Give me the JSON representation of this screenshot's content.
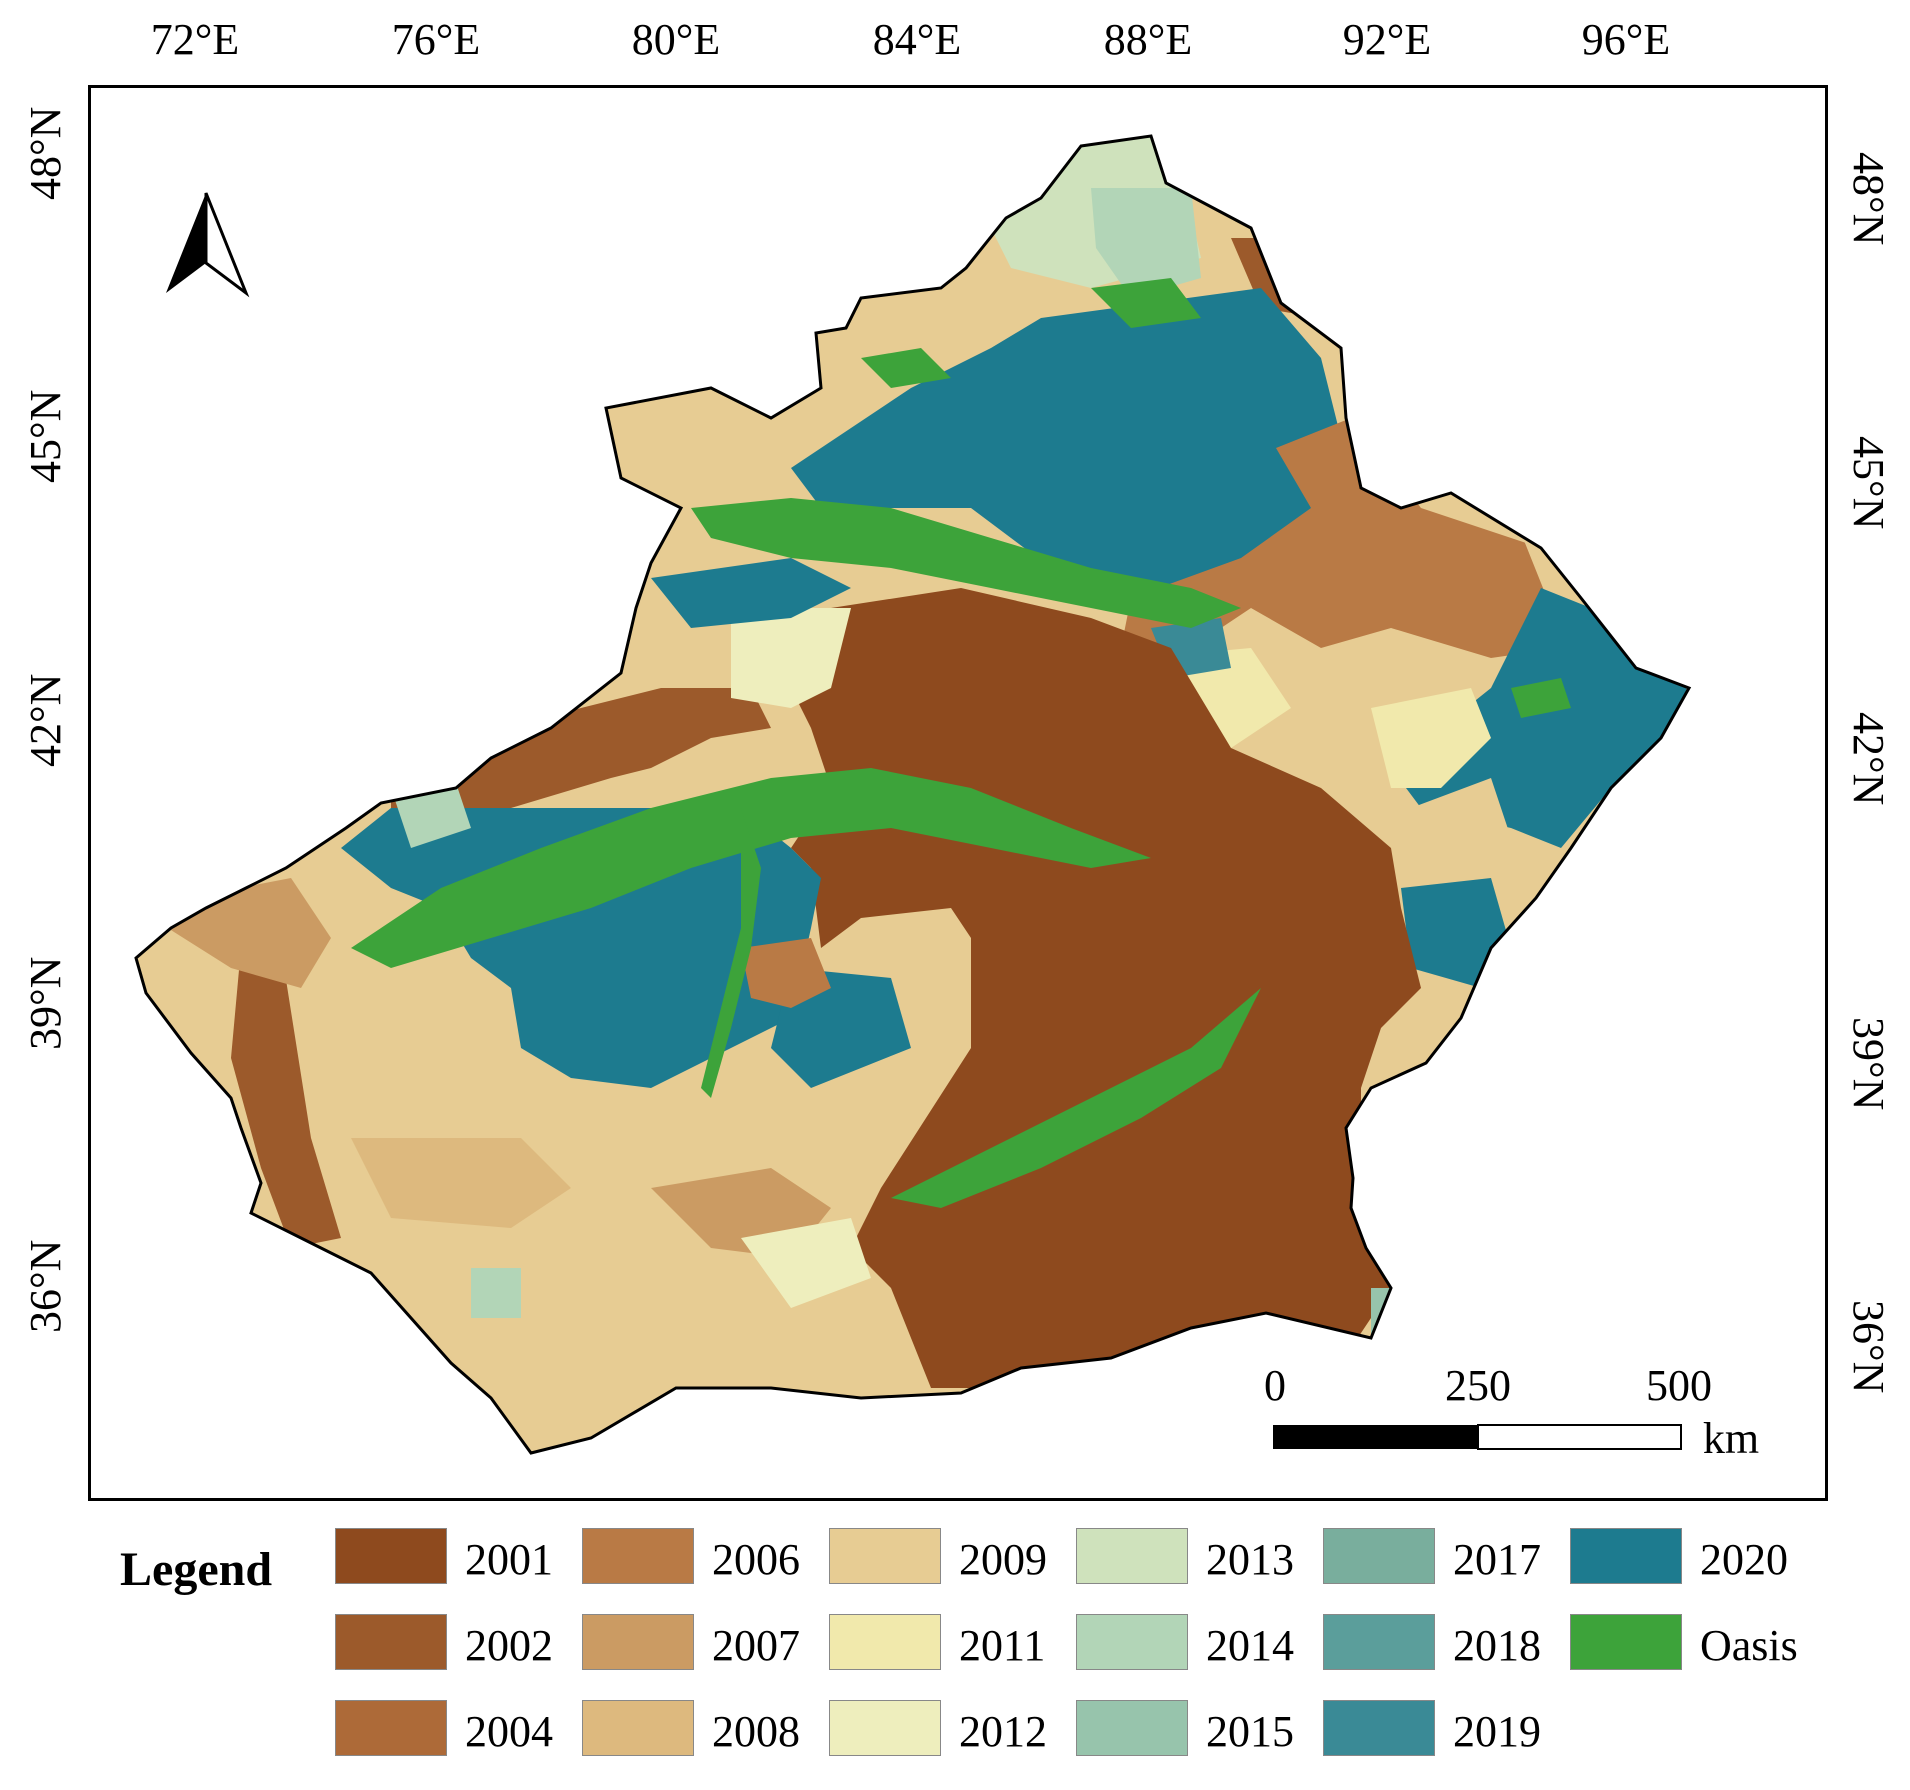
{
  "map": {
    "longitude_labels": [
      "72°E",
      "76°E",
      "80°E",
      "84°E",
      "88°E",
      "92°E",
      "96°E"
    ],
    "latitude_labels": [
      "48°N",
      "45°N",
      "42°N",
      "39°N",
      "36°N"
    ],
    "north_arrow": "north-arrow-icon",
    "scale_bar": {
      "labels": [
        "0",
        "250",
        "500"
      ],
      "unit": "km"
    }
  },
  "legend": {
    "title": "Legend",
    "items": [
      {
        "label": "2001",
        "color": "#8E4A1E"
      },
      {
        "label": "2006",
        "color": "#B97A45"
      },
      {
        "label": "2009",
        "color": "#E7CC93"
      },
      {
        "label": "2013",
        "color": "#CFE2BC"
      },
      {
        "label": "2017",
        "color": "#79AE9D"
      },
      {
        "label": "2020",
        "color": "#1D7B8F"
      },
      {
        "label": "2002",
        "color": "#9C5A2B"
      },
      {
        "label": "2007",
        "color": "#CB9B63"
      },
      {
        "label": "2011",
        "color": "#F1E9AC"
      },
      {
        "label": "2014",
        "color": "#B2D5B7"
      },
      {
        "label": "2018",
        "color": "#5B9E9B"
      },
      {
        "label": "Oasis",
        "color": "#3DA33A"
      },
      {
        "label": "2004",
        "color": "#AD6A38"
      },
      {
        "label": "2008",
        "color": "#DDB97E"
      },
      {
        "label": "2012",
        "color": "#EEEEBD"
      },
      {
        "label": "2015",
        "color": "#97C4AC"
      },
      {
        "label": "2019",
        "color": "#3A8A96"
      }
    ]
  }
}
